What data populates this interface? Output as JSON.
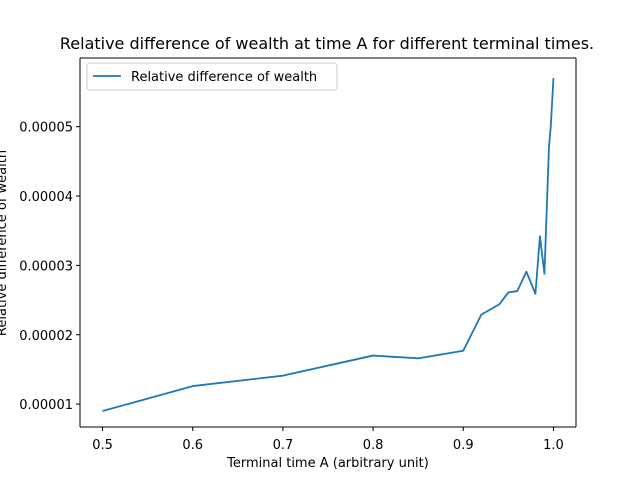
{
  "chart_data": {
    "type": "line",
    "title": "Relative difference of wealth at time A for different terminal times.",
    "xlabel": "Terminal time A (arbitrary unit)",
    "ylabel": "Relative difference of wealth",
    "xlim": [
      0.475,
      1.025
    ],
    "ylim": [
      6.7e-06,
      5.99e-05
    ],
    "x_ticks": [
      0.5,
      0.6,
      0.7,
      0.8,
      0.9,
      1.0
    ],
    "x_tick_labels": [
      "0.5",
      "0.6",
      "0.7",
      "0.8",
      "0.9",
      "1.0"
    ],
    "y_ticks": [
      1e-05,
      2e-05,
      3e-05,
      4e-05,
      5e-05
    ],
    "y_tick_labels": [
      "0.00001",
      "0.00002",
      "0.00003",
      "0.00004",
      "0.00005"
    ],
    "grid": false,
    "legend_position": "upper left",
    "series": [
      {
        "name": "Relative difference of wealth",
        "color": "#1f77b4",
        "x": [
          0.5,
          0.6,
          0.7,
          0.8,
          0.85,
          0.9,
          0.92,
          0.94,
          0.95,
          0.96,
          0.97,
          0.98,
          0.985,
          0.99,
          0.995,
          0.997,
          1.0
        ],
        "y": [
          9e-06,
          1.26e-05,
          1.41e-05,
          1.7e-05,
          1.66e-05,
          1.77e-05,
          2.29e-05,
          2.44e-05,
          2.61e-05,
          2.63e-05,
          2.91e-05,
          2.59e-05,
          3.42e-05,
          2.88e-05,
          4.7e-05,
          5e-05,
          5.7e-05
        ]
      }
    ]
  }
}
